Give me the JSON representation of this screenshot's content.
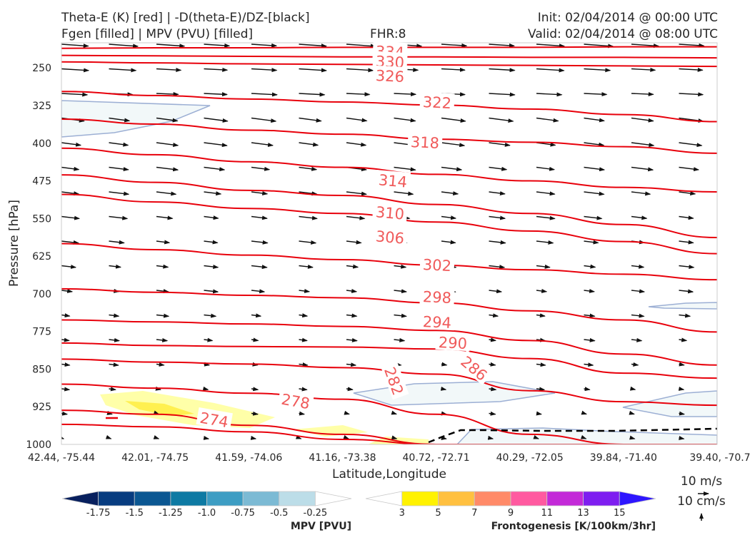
{
  "header": {
    "title_line1": "Theta-E (K) [red] | -D(theta-E)/DZ-[black]",
    "title_line2": "Fgen [filled] | MPV (PVU) [filled]",
    "fhr": "FHR:8",
    "init": "Init: 02/04/2014 @ 00:00 UTC",
    "valid": "Valid: 02/04/2014 @ 08:00 UTC"
  },
  "chart_data": {
    "type": "cross-section",
    "xlabel": "Latitude,Longitude",
    "ylabel": "Pressure [hPa]",
    "x_ticks": [
      "42.44, -75.44",
      "42.01, -74.75",
      "41.59, -74.06",
      "41.16, -73.38",
      "40.72, -72.71",
      "40.29, -72.05",
      "39.84, -71.40",
      "39.40, -70.7"
    ],
    "y_ticks": [
      250,
      325,
      400,
      475,
      550,
      625,
      700,
      775,
      850,
      925,
      1000
    ],
    "ylim": [
      1000,
      200
    ],
    "theta_e_contours": [
      {
        "label": "334",
        "color": "#e8000b",
        "p": [
          211,
          210,
          210,
          209,
          209,
          209,
          208,
          208
        ]
      },
      {
        "label": "330",
        "color": "#e8000b",
        "p": [
          225,
          226,
          227,
          228,
          228,
          229,
          229,
          230
        ]
      },
      {
        "label": "326",
        "color": "#e8000b",
        "p": [
          238,
          240,
          242,
          243,
          244,
          245,
          246,
          247
        ]
      },
      {
        "label": "322",
        "color": "#e8000b",
        "p": [
          297,
          305,
          312,
          318,
          324,
          332,
          343,
          357
        ]
      },
      {
        "label": "318",
        "color": "#e8000b",
        "p": [
          352,
          362,
          374,
          382,
          392,
          398,
          407,
          420
        ]
      },
      {
        "label": "314",
        "color": "#e8000b",
        "p": [
          410,
          423,
          437,
          448,
          462,
          475,
          488,
          497
        ]
      },
      {
        "label": "310",
        "color": "#e8000b",
        "p": [
          463,
          478,
          494,
          504,
          522,
          540,
          562,
          588
        ]
      },
      {
        "label": "306",
        "color": "#e8000b",
        "p": [
          502,
          517,
          530,
          540,
          557,
          575,
          596,
          620
        ]
      },
      {
        "label": "302",
        "color": "#e8000b",
        "p": [
          600,
          612,
          623,
          632,
          643,
          652,
          661,
          672
        ]
      },
      {
        "label": "298",
        "color": "#e8000b",
        "p": [
          690,
          697,
          703,
          708,
          718,
          734,
          752,
          776
        ]
      },
      {
        "label": "294",
        "color": "#e8000b",
        "p": [
          752,
          756,
          760,
          765,
          773,
          793,
          820,
          842
        ]
      },
      {
        "label": "290",
        "color": "#e8000b",
        "p": [
          798,
          803,
          805,
          806,
          810,
          829,
          858,
          868
        ]
      },
      {
        "label": "286",
        "color": "#e8000b",
        "p": [
          830,
          836,
          840,
          847,
          860,
          893,
          915,
          922
        ]
      },
      {
        "label": "282",
        "color": "#e8000b",
        "p": [
          880,
          888,
          898,
          910,
          940,
          980,
          1000,
          1000
        ]
      },
      {
        "label": "278",
        "color": "#e8000b",
        "p": [
          932,
          940,
          962,
          980,
          1000,
          1000,
          1000,
          1000
        ]
      },
      {
        "label": "274",
        "color": "#e8000b",
        "p": [
          960,
          965,
          975,
          990,
          1000,
          1000,
          1000,
          1000
        ]
      }
    ],
    "mpv_colorbar": {
      "title": "MPV [PVU]",
      "ticks": [
        "-1.75",
        "-1.5",
        "-1.25",
        "-1.0",
        "-0.75",
        "-0.5",
        "-0.25"
      ],
      "colors": [
        "#08205e",
        "#073c80",
        "#0b5792",
        "#0e7aa3",
        "#3d9dc3",
        "#7cbad4",
        "#bcdde8",
        "#ffffff"
      ]
    },
    "fgen_colorbar": {
      "title": "Frontogenesis [K/100km/3hr]",
      "ticks": [
        "3",
        "5",
        "7",
        "9",
        "11",
        "13",
        "15"
      ],
      "colors": [
        "#ffffff",
        "#fff200",
        "#ffc040",
        "#ff8a68",
        "#ff5aa0",
        "#c32ad8",
        "#7e1ef0",
        "#2e16ff"
      ]
    },
    "quiver_key": {
      "horizontal": "10 m/s",
      "vertical": "10 cm/s"
    }
  }
}
